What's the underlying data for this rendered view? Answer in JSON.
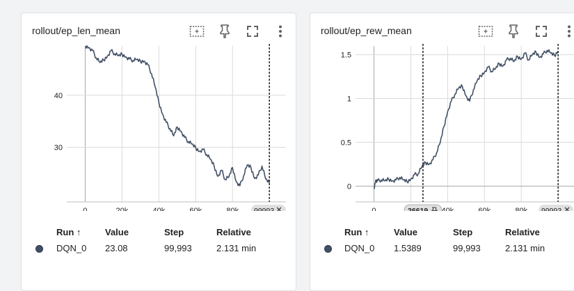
{
  "panels": [
    {
      "title": "rollout/ep_len_mean",
      "legend": {
        "headers": [
          "Run ↑",
          "Value",
          "Step",
          "Relative"
        ],
        "rows": [
          {
            "run": "DQN_0",
            "value": "23.08",
            "step": "99,993",
            "relative": "2.131 min",
            "color": "#425066"
          }
        ]
      },
      "markers": [
        {
          "label": "99993",
          "icon": "close-icon"
        }
      ]
    },
    {
      "title": "rollout/ep_rew_mean",
      "legend": {
        "headers": [
          "Run ↑",
          "Value",
          "Step",
          "Relative"
        ],
        "rows": [
          {
            "run": "DQN_0",
            "value": "1.5389",
            "step": "99,993",
            "relative": "2.131 min",
            "color": "#425066"
          }
        ]
      },
      "markers": [
        {
          "label": "26619",
          "icon": "pin-icon"
        },
        {
          "label": "99993",
          "icon": "close-icon"
        }
      ]
    }
  ],
  "toolbar_icons": [
    "fit-domain-icon",
    "pin-icon",
    "fullscreen-icon",
    "more-vert-icon"
  ],
  "chart_data": [
    {
      "type": "line",
      "title": "rollout/ep_len_mean",
      "xlabel": "",
      "ylabel": "",
      "x_ticks": [
        "0",
        "20k",
        "40k",
        "60k",
        "80k"
      ],
      "y_ticks": [
        "30",
        "40"
      ],
      "xlim": [
        -10000,
        109000
      ],
      "ylim": [
        19.5,
        49.5
      ],
      "grid": true,
      "series": [
        {
          "color": "#425066",
          "x": [
            0,
            2000,
            4000,
            6000,
            8000,
            10000,
            12000,
            14000,
            16000,
            18000,
            20000,
            22000,
            24000,
            26000,
            28000,
            30000,
            32000,
            34000,
            36000,
            38000,
            40000,
            42000,
            44000,
            46000,
            48000,
            50000,
            52000,
            54000,
            56000,
            58000,
            60000,
            62000,
            64000,
            66000,
            68000,
            70000,
            72000,
            74000,
            76000,
            78000,
            80000,
            82000,
            84000,
            86000,
            88000,
            90000,
            92000,
            94000,
            96000,
            98000,
            99993
          ],
          "y": [
            49.5,
            49.2,
            48.6,
            47.2,
            46.3,
            46.8,
            47.5,
            48.6,
            48.0,
            47.6,
            47.9,
            47.4,
            47.0,
            46.7,
            46.9,
            46.5,
            46.6,
            45.9,
            44.2,
            41.6,
            38.6,
            36.4,
            34.8,
            33.6,
            32.2,
            33.9,
            33.1,
            31.9,
            31.1,
            30.6,
            29.9,
            29.2,
            29.6,
            28.6,
            27.7,
            26.4,
            24.4,
            25.6,
            23.8,
            24.3,
            26.1,
            23.4,
            22.6,
            24.5,
            26.6,
            26.1,
            24.0,
            24.7,
            26.4,
            23.9,
            23.1
          ]
        }
      ]
    },
    {
      "type": "line",
      "title": "rollout/ep_rew_mean",
      "xlabel": "",
      "ylabel": "",
      "x_ticks": [
        "0",
        "20k",
        "40k",
        "60k",
        "80k"
      ],
      "y_ticks": [
        "0",
        "0.5",
        "1",
        "1.5"
      ],
      "xlim": [
        -10000,
        109000
      ],
      "ylim": [
        -0.18,
        1.6
      ],
      "grid": true,
      "series": [
        {
          "color": "#425066",
          "x": [
            0,
            1000,
            2000,
            4000,
            6000,
            8000,
            10000,
            12000,
            14000,
            16000,
            18000,
            20000,
            22000,
            24000,
            26000,
            28000,
            30000,
            32000,
            34000,
            36000,
            38000,
            40000,
            42000,
            44000,
            46000,
            48000,
            50000,
            52000,
            54000,
            56000,
            58000,
            60000,
            62000,
            64000,
            66000,
            68000,
            70000,
            72000,
            74000,
            76000,
            78000,
            80000,
            82000,
            84000,
            86000,
            88000,
            90000,
            92000,
            94000,
            96000,
            98000,
            99993
          ],
          "y": [
            -0.03,
            0.07,
            0.06,
            0.07,
            0.06,
            0.08,
            0.06,
            0.07,
            0.1,
            0.07,
            0.05,
            0.08,
            0.13,
            0.14,
            0.22,
            0.27,
            0.25,
            0.3,
            0.38,
            0.5,
            0.68,
            0.85,
            0.97,
            1.05,
            1.12,
            1.14,
            1.03,
            0.97,
            1.1,
            1.2,
            1.26,
            1.3,
            1.36,
            1.31,
            1.34,
            1.4,
            1.37,
            1.44,
            1.46,
            1.42,
            1.48,
            1.45,
            1.52,
            1.44,
            1.5,
            1.53,
            1.47,
            1.51,
            1.55,
            1.52,
            1.49,
            1.54
          ]
        }
      ]
    }
  ]
}
